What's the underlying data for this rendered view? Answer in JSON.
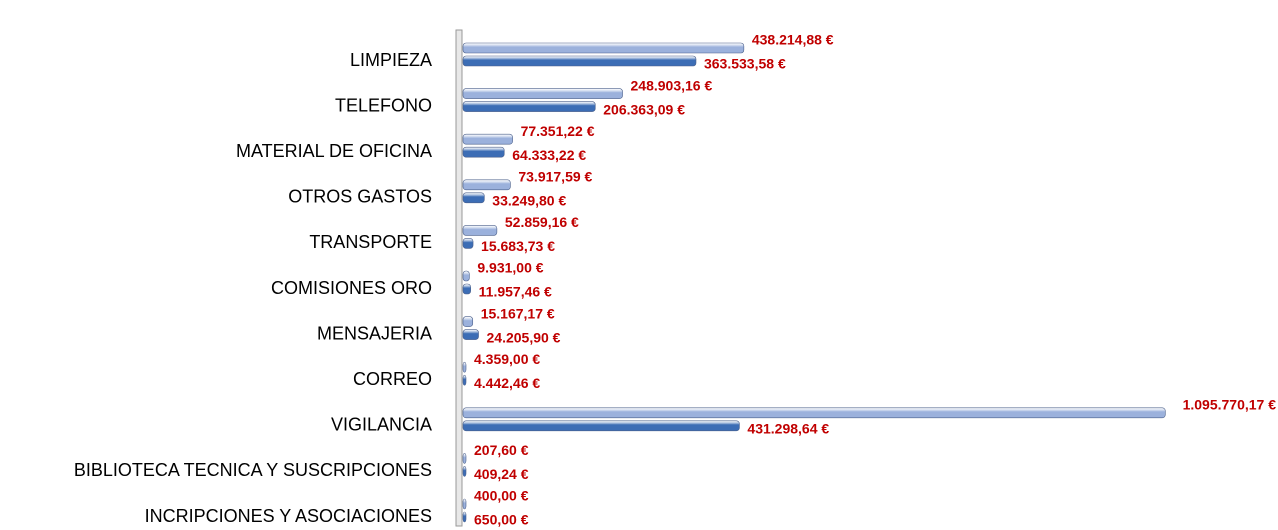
{
  "chart_data": {
    "type": "bar",
    "orientation": "horizontal",
    "categories": [
      "LIMPIEZA",
      "TELEFONO",
      "MATERIAL DE OFICINA",
      "OTROS GASTOS",
      "TRANSPORTE",
      "COMISIONES ORO",
      "MENSAJERIA",
      "CORREO",
      "VIGILANCIA",
      "BIBLIOTECA TECNICA Y SUSCRIPCIONES",
      "INCRIPCIONES Y ASOCIACIONES"
    ],
    "series": [
      {
        "color": "#9bb1dc",
        "values": [
          438214.88,
          248903.16,
          77351.22,
          73917.59,
          52859.16,
          9931.0,
          15167.17,
          4359.0,
          1095770.17,
          207.6,
          400.0
        ],
        "value_labels": [
          "438.214,88 €",
          "248.903,16 €",
          "77.351,22 €",
          "73.917,59 €",
          "52.859,16 €",
          "9.931,00 €",
          "15.167,17 €",
          "4.359,00 €",
          "1.095.770,17 €",
          "207,60 €",
          "400,00 €"
        ]
      },
      {
        "color": "#3c6db5",
        "values": [
          363533.58,
          206363.09,
          64333.22,
          33249.8,
          15683.73,
          11957.46,
          24205.9,
          4442.46,
          431298.64,
          409.24,
          650.0
        ],
        "value_labels": [
          "363.533,58 €",
          "206.363,09 €",
          "64.333,22 €",
          "33.249,80 €",
          "15.683,73 €",
          "11.957,46 €",
          "24.205,90 €",
          "4.442,46 €",
          "431.298,64 €",
          "409,24 €",
          "650,00 €"
        ]
      }
    ],
    "xlim": [
      0,
      1100000
    ]
  }
}
